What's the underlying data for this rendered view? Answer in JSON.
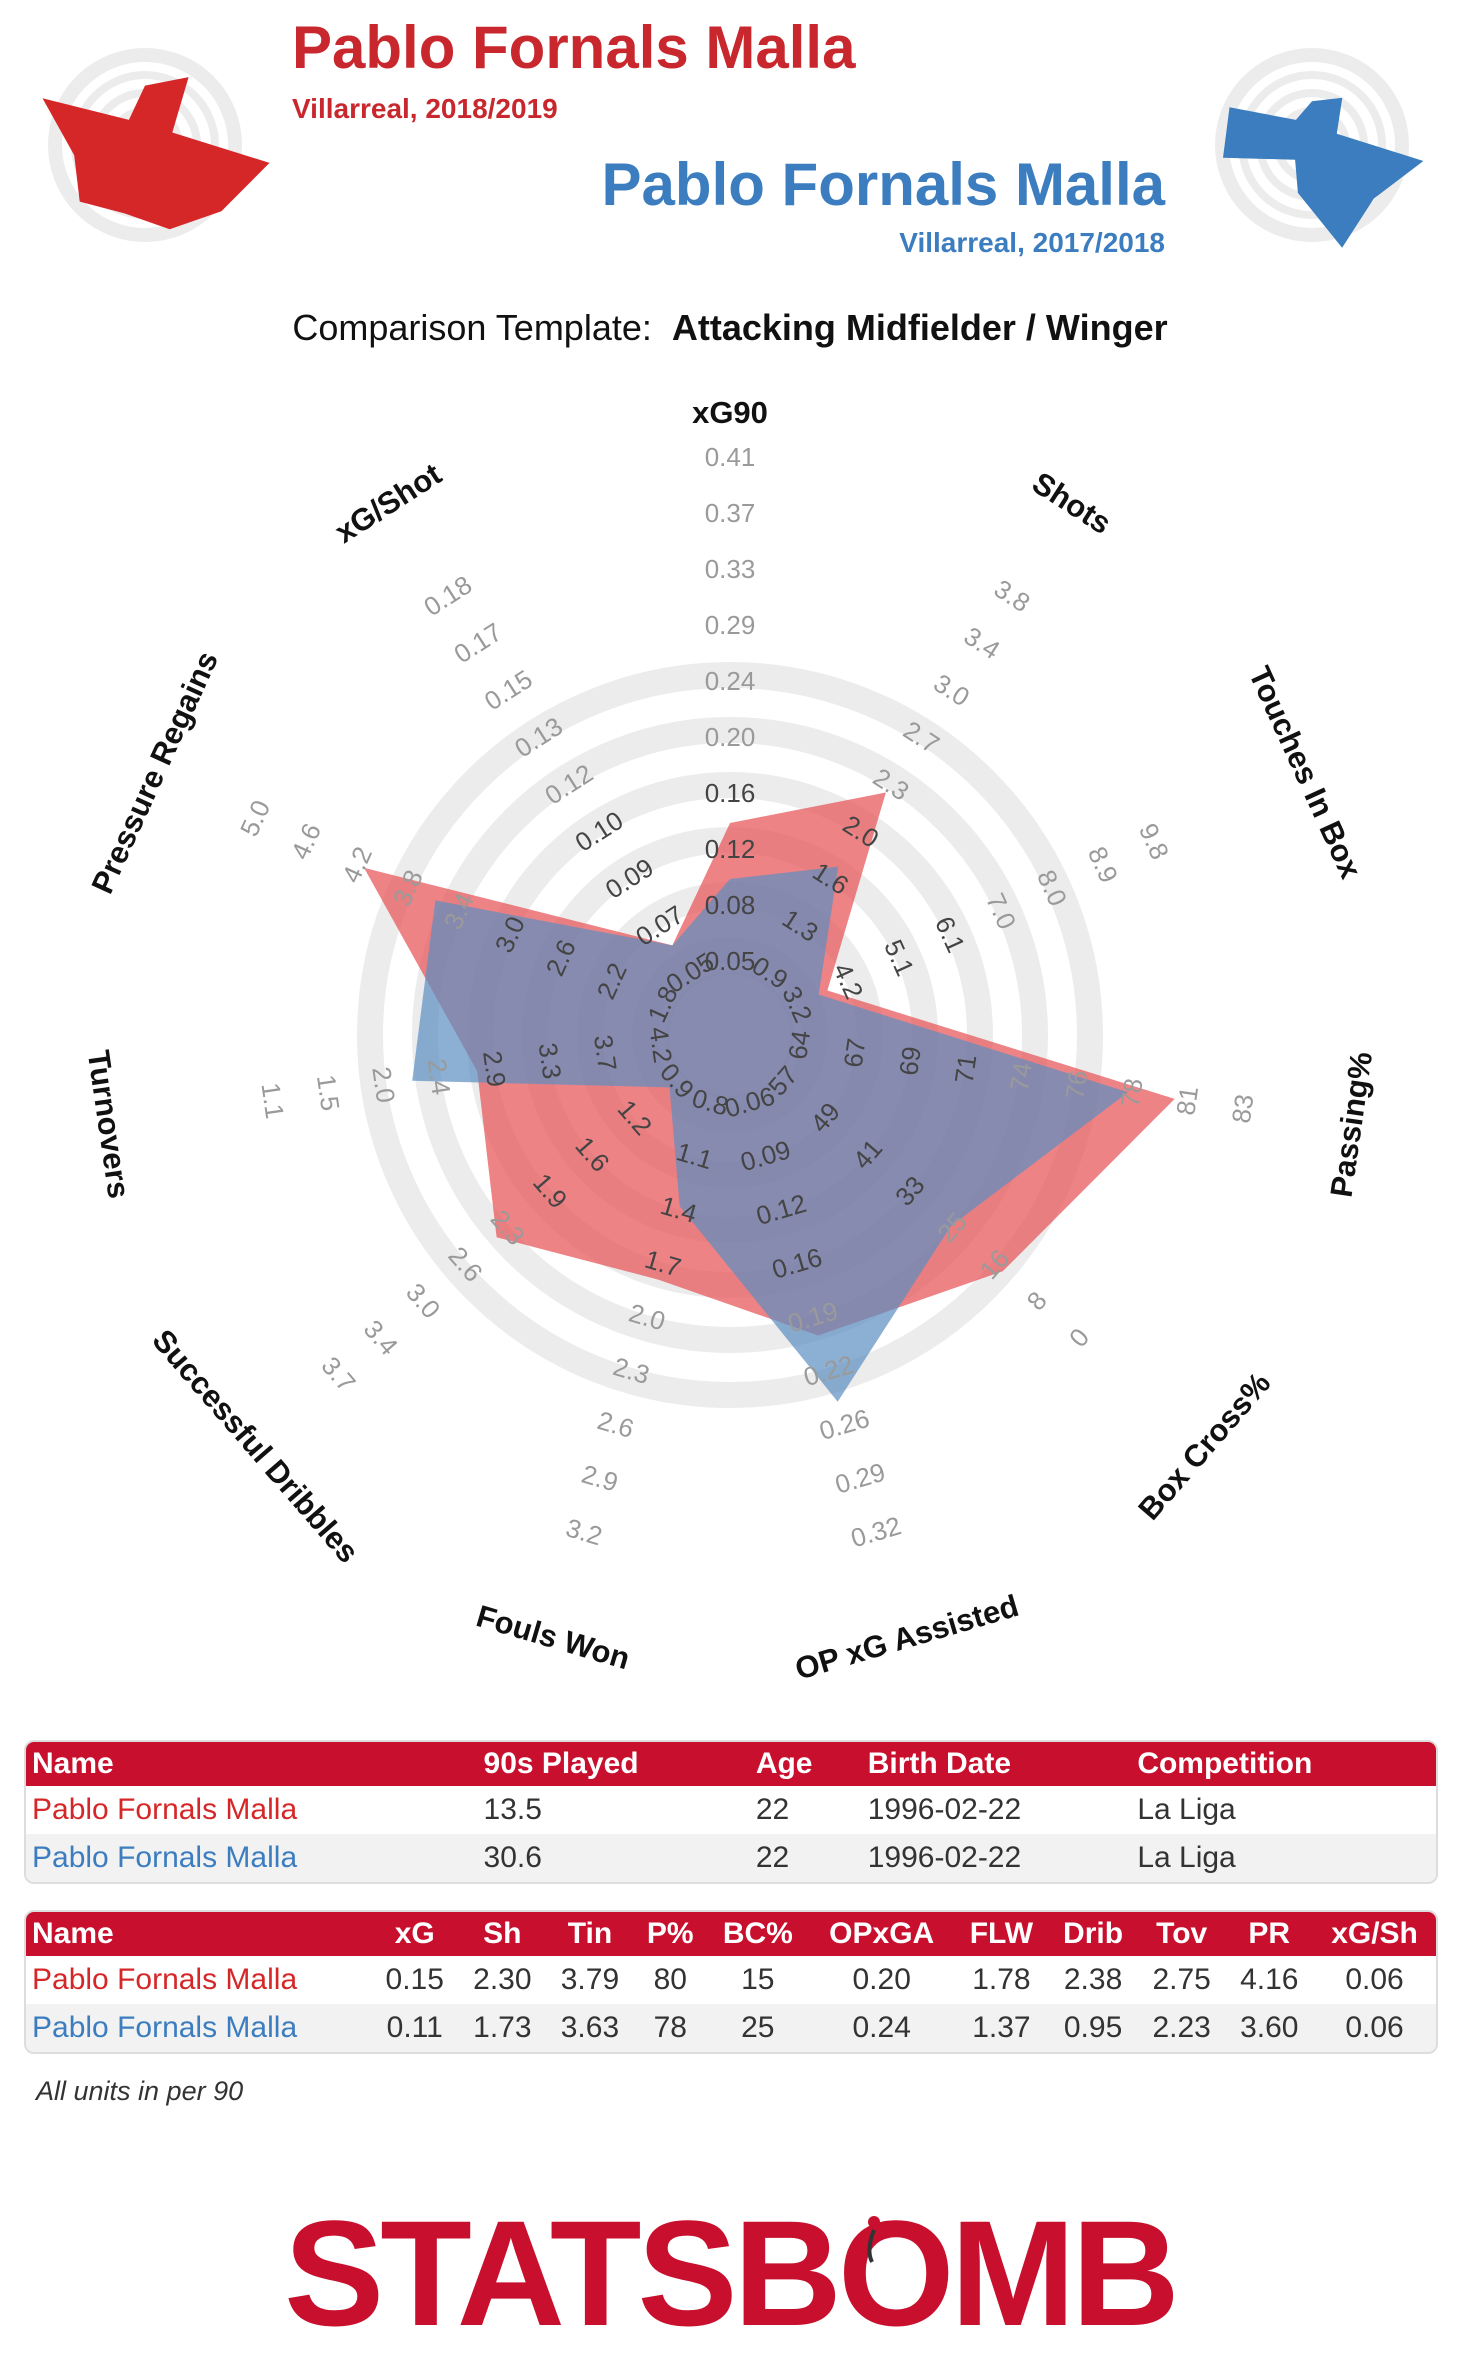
{
  "header": {
    "player1": {
      "name": "Pablo Fornals Malla",
      "sub": "Villarreal, 2018/2019",
      "color": "#c8282d"
    },
    "player2": {
      "name": "Pablo Fornals Malla",
      "sub": "Villarreal, 2017/2018",
      "color": "#3b7dbf"
    },
    "template_label": "Comparison Template:",
    "template_value": "Attacking Midfielder / Winger"
  },
  "chart_data": {
    "type": "radar",
    "series": [
      {
        "name": "Pablo Fornals Malla",
        "color": "#e8595e",
        "values": [
          0.15,
          2.3,
          3.79,
          80,
          15,
          0.2,
          1.78,
          2.38,
          2.75,
          4.16,
          0.06
        ]
      },
      {
        "name": "Pablo Fornals Malla",
        "color": "#5b8ec2",
        "values": [
          0.11,
          1.73,
          3.63,
          78,
          25,
          0.24,
          1.37,
          0.95,
          2.23,
          3.6,
          0.06
        ]
      }
    ],
    "axes": [
      {
        "label": "xG90",
        "ticks": [
          "0.05",
          "0.08",
          "0.12",
          "0.16",
          "0.20",
          "0.24",
          "0.29",
          "0.33",
          "0.37",
          "0.41"
        ]
      },
      {
        "label": "Shots",
        "ticks": [
          "0.9",
          "1.3",
          "1.6",
          "2.0",
          "2.3",
          "2.7",
          "3.0",
          "3.4",
          "3.8"
        ]
      },
      {
        "label": "Touches In Box",
        "ticks": [
          "3.2",
          "4.2",
          "5.1",
          "6.1",
          "7.0",
          "8.0",
          "8.9",
          "9.8"
        ]
      },
      {
        "label": "Passing%",
        "ticks": [
          "64",
          "67",
          "69",
          "71",
          "74",
          "76",
          "78",
          "81",
          "83"
        ]
      },
      {
        "label": "Box Cross%",
        "ticks": [
          "57",
          "49",
          "41",
          "33",
          "25",
          "16",
          "8",
          "0"
        ]
      },
      {
        "label": "OP xG Assisted",
        "ticks": [
          "0.06",
          "0.09",
          "0.12",
          "0.16",
          "0.19",
          "0.22",
          "0.26",
          "0.29",
          "0.32"
        ]
      },
      {
        "label": "Fouls Won",
        "ticks": [
          "0.8",
          "1.1",
          "1.4",
          "1.7",
          "2.0",
          "2.3",
          "2.6",
          "2.9",
          "3.2"
        ]
      },
      {
        "label": "Successful Dribbles",
        "ticks": [
          "0.9",
          "1.2",
          "1.6",
          "1.9",
          "2.3",
          "2.6",
          "3.0",
          "3.4",
          "3.7"
        ]
      },
      {
        "label": "Turnovers",
        "ticks": [
          "4.2",
          "3.7",
          "3.3",
          "2.9",
          "2.4",
          "2.0",
          "1.5",
          "1.1"
        ]
      },
      {
        "label": "Pressure Regains",
        "ticks": [
          "1.8",
          "2.2",
          "2.6",
          "3.0",
          "3.4",
          "3.8",
          "4.2",
          "4.6",
          "5.0"
        ]
      },
      {
        "label": "xG/Shot",
        "ticks": [
          "0.05",
          "0.07",
          "0.09",
          "0.10",
          "0.12",
          "0.13",
          "0.15",
          "0.17",
          "0.18"
        ]
      }
    ]
  },
  "table1": {
    "headers": [
      "Name",
      "90s Played",
      "Age",
      "Birth Date",
      "Competition"
    ],
    "rows": [
      [
        "Pablo Fornals Malla",
        "13.5",
        "22",
        "1996-02-22",
        "La Liga"
      ],
      [
        "Pablo Fornals Malla",
        "30.6",
        "22",
        "1996-02-22",
        "La Liga"
      ]
    ]
  },
  "table2": {
    "headers": [
      "Name",
      "xG",
      "Sh",
      "Tin",
      "P%",
      "BC%",
      "OPxGA",
      "FLW",
      "Drib",
      "Tov",
      "PR",
      "xG/Sh"
    ],
    "rows": [
      [
        "Pablo Fornals Malla",
        "0.15",
        "2.30",
        "3.79",
        "80",
        "15",
        "0.20",
        "1.78",
        "2.38",
        "2.75",
        "4.16",
        "0.06"
      ],
      [
        "Pablo Fornals Malla",
        "0.11",
        "1.73",
        "3.63",
        "78",
        "25",
        "0.24",
        "1.37",
        "0.95",
        "2.23",
        "3.60",
        "0.06"
      ]
    ]
  },
  "note": "All units in per 90",
  "logo": {
    "text": "STATSBOMB"
  }
}
